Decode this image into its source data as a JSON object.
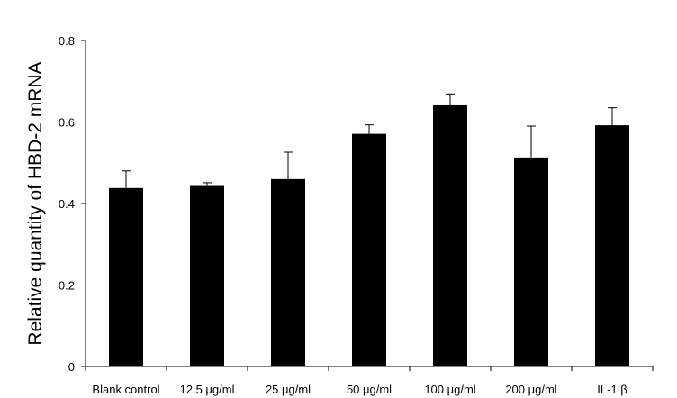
{
  "chart_data": {
    "type": "bar",
    "title": "",
    "xlabel": "",
    "ylabel": "Relative quantity of HBD-2 mRNA",
    "ylim": [
      0,
      0.8
    ],
    "yticks": [
      "0",
      "0.2",
      "0.4",
      "0.6",
      "0.8"
    ],
    "categories": [
      "Blank control",
      "12.5 μg/ml",
      "25 μg/ml",
      "50 μg/ml",
      "100 μg/ml",
      "200 μg/ml",
      "IL-1 β"
    ],
    "values": [
      0.438,
      0.443,
      0.46,
      0.571,
      0.641,
      0.513,
      0.592
    ],
    "errors": [
      0.042,
      0.008,
      0.066,
      0.022,
      0.028,
      0.077,
      0.043
    ],
    "grid": false,
    "legend": "none",
    "bar_color": "#000000"
  }
}
